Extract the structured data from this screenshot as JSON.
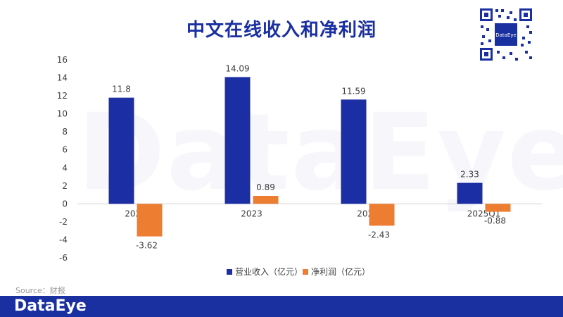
{
  "title": "中文在线收入和净利润",
  "source": "Source：财报",
  "brand": "DataEye",
  "qr_center_text": "DataEye",
  "colors": {
    "title": "#1a2fa0",
    "revenue": "#1c2ea3",
    "profit": "#ed7d31",
    "footer": "#1a2fa0"
  },
  "chart_data": {
    "type": "bar",
    "categories": [
      "2022",
      "2023",
      "2024",
      "2025Q1"
    ],
    "series": [
      {
        "name": "营业收入（亿元）",
        "values": [
          11.8,
          14.09,
          11.59,
          2.33
        ]
      },
      {
        "name": "净利润（亿元）",
        "values": [
          -3.62,
          0.89,
          -2.43,
          -0.88
        ]
      }
    ],
    "data_labels": [
      [
        "11.8",
        "14.09",
        "11.59",
        "2.33"
      ],
      [
        "-3.62",
        "0.89",
        "-2.43",
        "-0.88"
      ]
    ],
    "ylim": [
      -6,
      16
    ],
    "yticks": [
      -6,
      -4,
      -2,
      0,
      2,
      4,
      6,
      8,
      10,
      12,
      14,
      16
    ],
    "grid": false,
    "legend_position": "bottom"
  }
}
